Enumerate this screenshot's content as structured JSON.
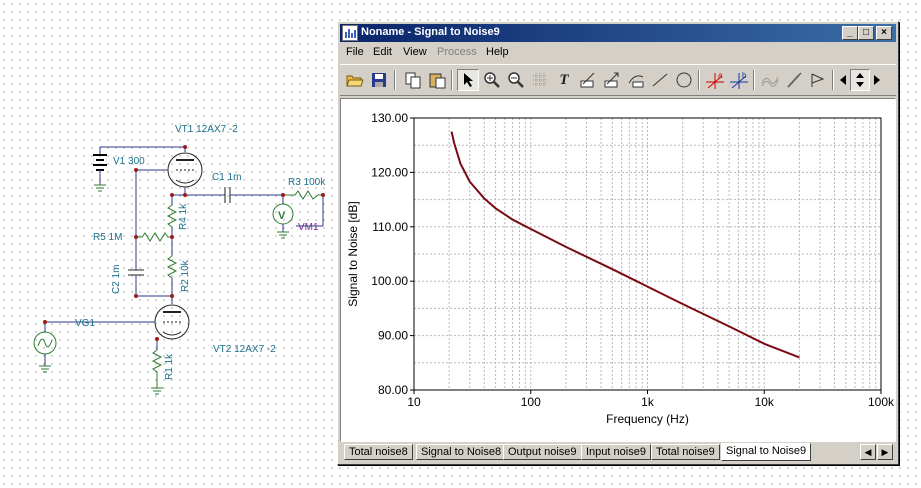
{
  "schematic": {
    "labels": {
      "vt1": "VT1 12AX7 -2",
      "v1": "V1 300",
      "c1": "C1 1m",
      "r3": "R3 100k",
      "r4": "R4 1k",
      "vm1": "VM1",
      "r5": "R5 1M",
      "c2": "C2 1m",
      "r2": "R2 10k",
      "vg1": "VG1",
      "r1": "R1 1k",
      "vt2": "VT2 12AX7 -2",
      "meter_symbol": "V"
    }
  },
  "window": {
    "title": "Noname - Signal to Noise9",
    "buttons": {
      "minimize": "_",
      "maximize": "□",
      "close": "×"
    },
    "menu": [
      "File",
      "Edit",
      "View",
      "Process",
      "Help"
    ],
    "menu_disabled": "Process",
    "toolbar": {
      "icons": [
        "open-icon",
        "save-icon",
        "copy-icon",
        "paste-icon",
        "pointer-icon",
        "zoom-in-icon",
        "zoom-out-icon",
        "grid-icon",
        "text-icon",
        "marker-icon",
        "marker2-icon",
        "marker3-icon",
        "line-icon",
        "circle-icon",
        "cursor-a-icon",
        "cursor-b-icon",
        "wave-icon",
        "probe-icon",
        "flag-icon",
        "arrow-left-icon",
        "arrow-updown-icon",
        "arrow-right-icon"
      ],
      "text_glyph": "T",
      "cursor_a": "a",
      "cursor_b": "b"
    },
    "tabs": [
      "Total noise8",
      "Signal to Noise8",
      "Output noise9",
      "Input noise9",
      "Total noise9",
      "Signal to Noise9"
    ],
    "active_tab": "Signal to Noise9"
  },
  "chart_data": {
    "type": "line",
    "xlabel": "Frequency (Hz)",
    "ylabel": "Signal to Noise [dB]",
    "xscale": "log",
    "xlim": [
      10,
      100000
    ],
    "ylim": [
      80,
      130
    ],
    "xticks": [
      "10",
      "100",
      "1k",
      "10k",
      "100k"
    ],
    "yticks": [
      "80.00",
      "90.00",
      "100.00",
      "110.00",
      "120.00",
      "130.00"
    ],
    "grid": true,
    "series": [
      {
        "color": "#7a0a14",
        "x": [
          21,
          22,
          25,
          30,
          40,
          50,
          70,
          100,
          200,
          500,
          1000,
          2000,
          5000,
          10000,
          20000
        ],
        "y": [
          127.5,
          125.5,
          121.6,
          118.3,
          115.2,
          113.4,
          111.3,
          109.6,
          106.3,
          102.2,
          99.0,
          95.8,
          91.7,
          88.5,
          86.0
        ]
      }
    ]
  }
}
